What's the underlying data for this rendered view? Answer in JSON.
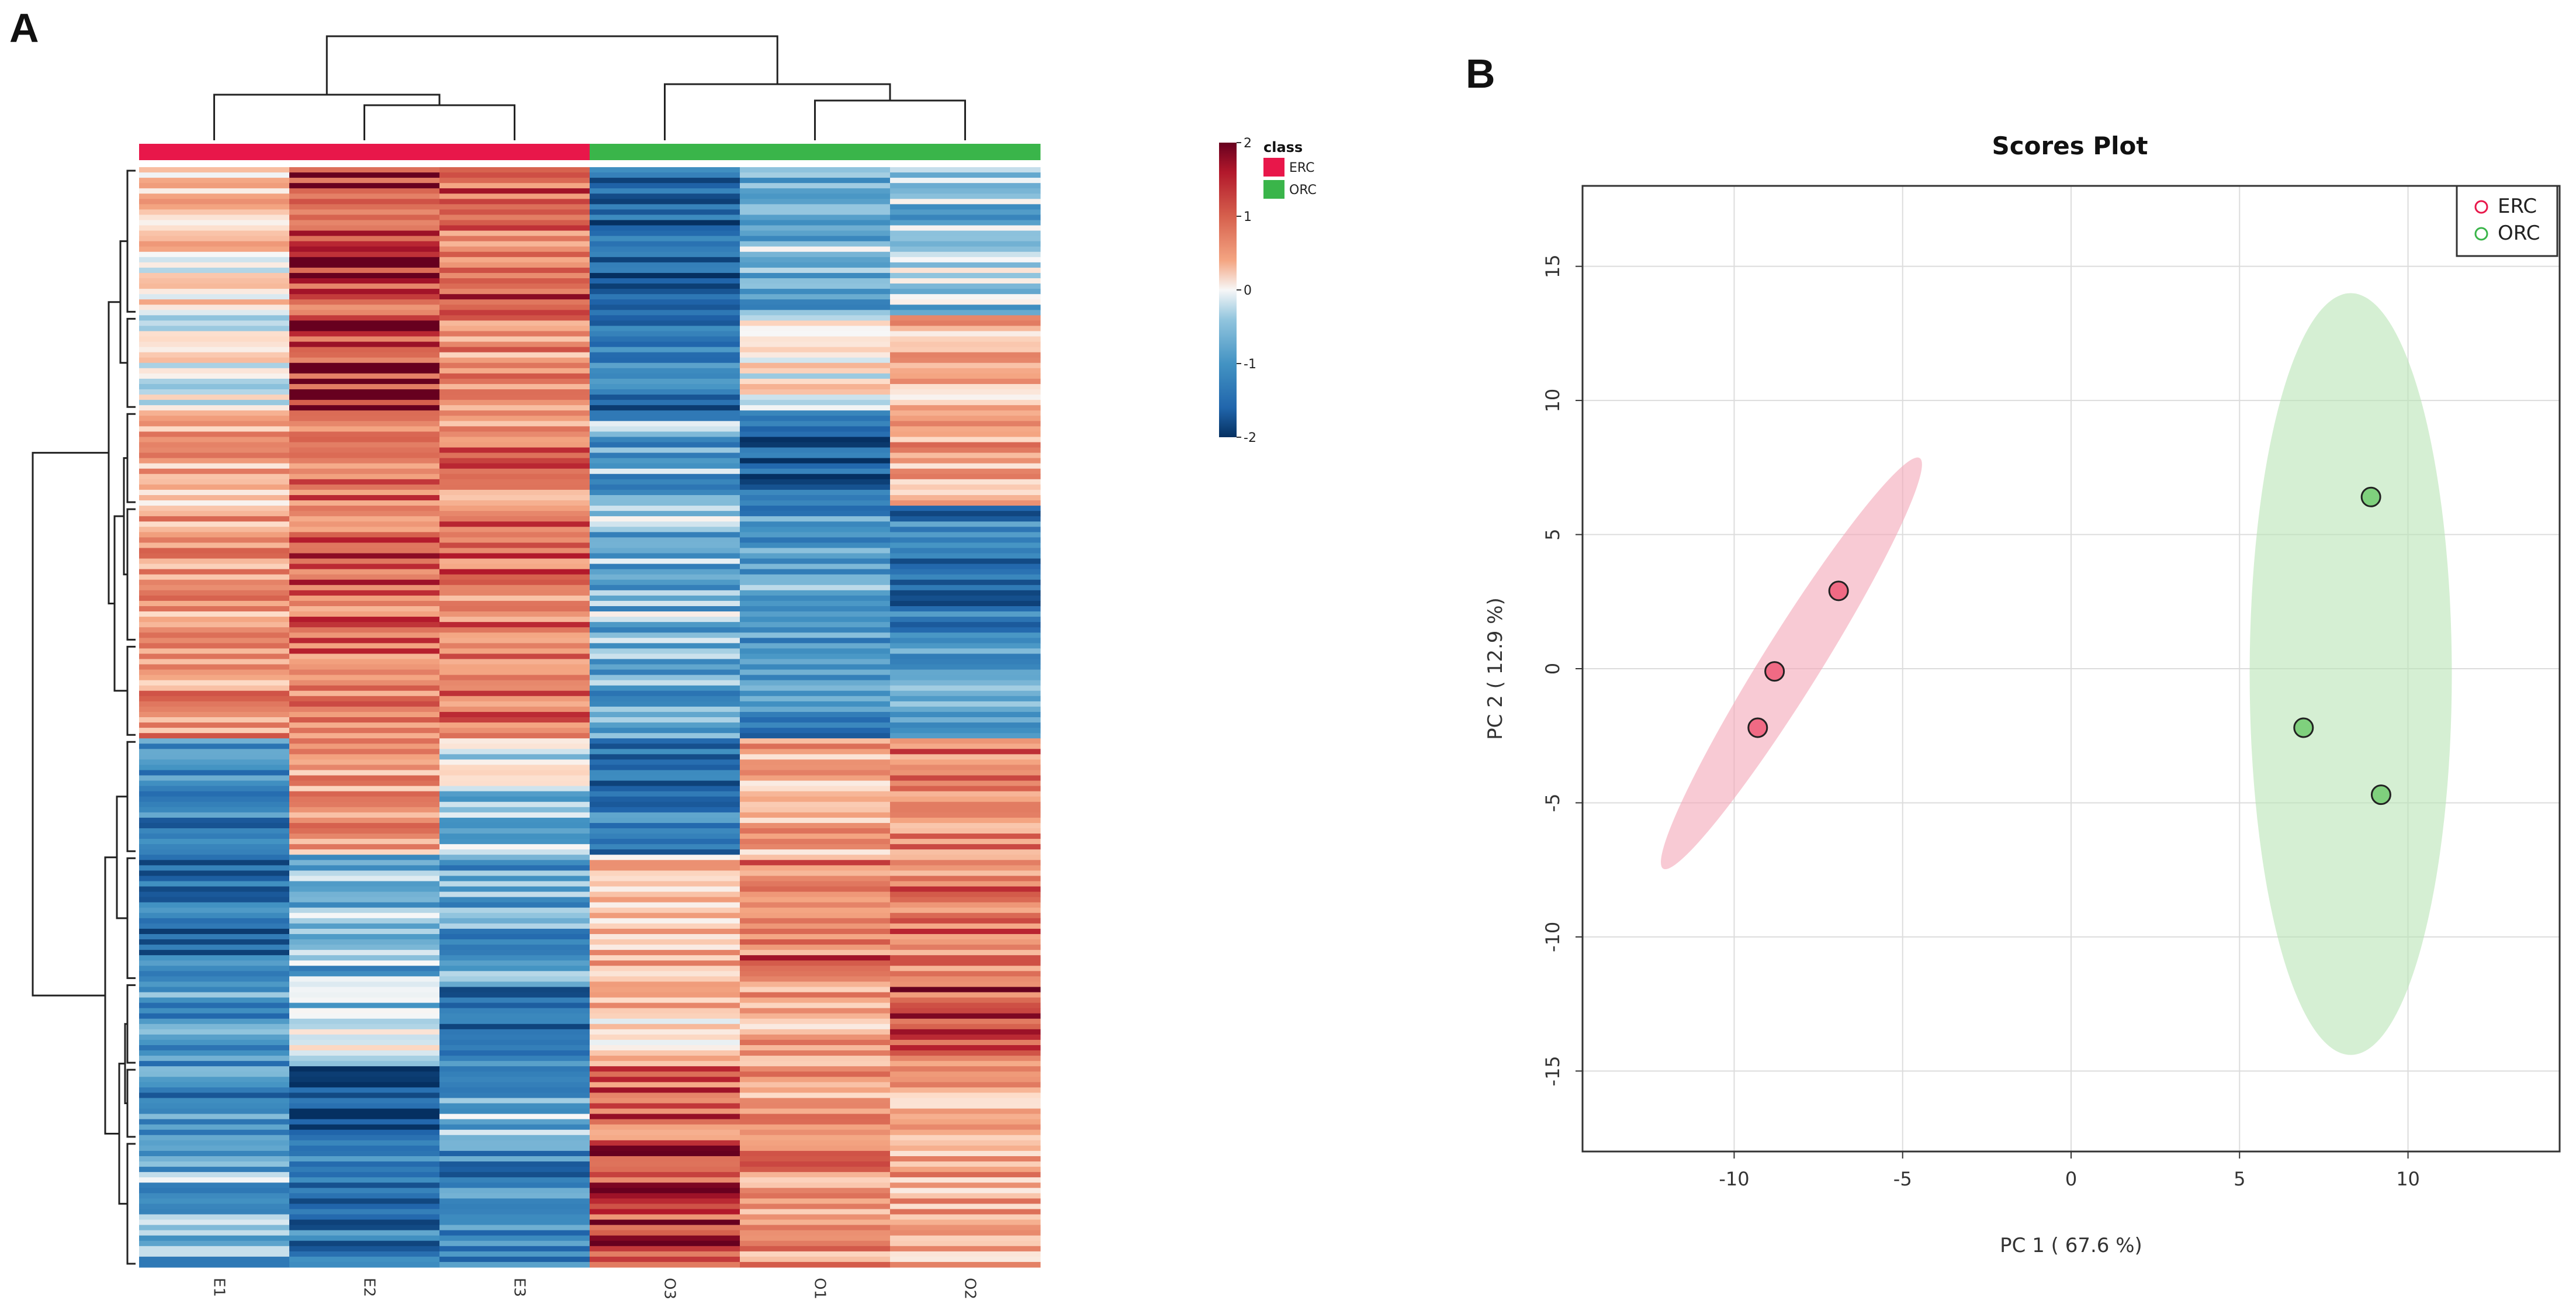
{
  "figure": {
    "panel_a_label": "A",
    "panel_b_label": "B"
  },
  "colors": {
    "erc": "#e8174a",
    "orc": "#3ab54a",
    "erc_point": "#f06a84",
    "orc_point": "#7fd07d",
    "erc_ellipse": "#f4a6b8",
    "orc_ellipse": "#b9e4b6",
    "heat_low": "#053061",
    "heat_mid": "#f7f7f7",
    "heat_high": "#67001f"
  },
  "chart_data": [
    {
      "type": "heatmap",
      "title": "",
      "columns": [
        "E1",
        "E2",
        "E3",
        "O3",
        "O1",
        "O2"
      ],
      "column_classes": [
        "ERC",
        "ERC",
        "ERC",
        "ORC",
        "ORC",
        "ORC"
      ],
      "column_dendrogram": "((E1,(E2,E3)),(O3,(O1,O2)))",
      "color_scale": {
        "min": -2,
        "max": 2,
        "ticks": [
          2,
          1,
          0,
          -1,
          -2
        ]
      },
      "legend": {
        "title": "class",
        "entries": [
          "ERC",
          "ORC"
        ]
      },
      "cluster_blocks": [
        {
          "rows": 28,
          "means": [
            0.4,
            1.6,
            1.3,
            -1.5,
            -0.6,
            -0.4
          ]
        },
        {
          "rows": 18,
          "means": [
            0.0,
            1.7,
            1.0,
            -1.3,
            0.3,
            0.6
          ]
        },
        {
          "rows": 18,
          "means": [
            0.7,
            1.2,
            1.1,
            -0.7,
            -1.4,
            0.8
          ]
        },
        {
          "rows": 26,
          "means": [
            0.9,
            1.3,
            1.2,
            -0.5,
            -0.8,
            -1.2
          ]
        },
        {
          "rows": 18,
          "means": [
            1.0,
            1.3,
            1.1,
            -0.8,
            -1.1,
            -0.9
          ]
        },
        {
          "rows": 22,
          "means": [
            -1.1,
            1.0,
            -0.2,
            -1.2,
            0.8,
            1.1
          ]
        },
        {
          "rows": 24,
          "means": [
            -1.3,
            -0.6,
            -0.8,
            0.7,
            1.2,
            1.2
          ]
        },
        {
          "rows": 16,
          "means": [
            -0.9,
            -0.2,
            -1.2,
            0.5,
            0.8,
            1.4
          ]
        },
        {
          "rows": 14,
          "means": [
            -1.0,
            -1.8,
            -0.6,
            1.3,
            0.9,
            0.8
          ]
        },
        {
          "rows": 24,
          "means": [
            -0.6,
            -1.2,
            -1.1,
            1.6,
            1.0,
            0.8
          ]
        }
      ]
    },
    {
      "type": "scatter",
      "title": "Scores Plot",
      "xlabel": "PC 1 ( 67.6 %)",
      "ylabel": "PC 2 ( 12.9 %)",
      "xlim": [
        -14.5,
        14.5
      ],
      "ylim": [
        -18,
        18
      ],
      "xticks": [
        -10,
        -5,
        0,
        5,
        10
      ],
      "yticks": [
        15,
        10,
        5,
        0,
        -5,
        -10,
        -15
      ],
      "grid": true,
      "legend_position": "top-right",
      "series": [
        {
          "name": "ERC",
          "points": [
            [
              -6.9,
              2.9
            ],
            [
              -8.8,
              -0.1
            ],
            [
              -9.3,
              -2.2
            ]
          ],
          "ellipse": {
            "cx": -8.3,
            "cy": 0.2,
            "rx": 8.0,
            "ry": 0.95,
            "angle_deg": 58
          }
        },
        {
          "name": "ORC",
          "points": [
            [
              8.9,
              6.4
            ],
            [
              6.9,
              -2.2
            ],
            [
              9.2,
              -4.7
            ]
          ],
          "ellipse": {
            "cx": 8.3,
            "cy": -0.2,
            "rx": 3.0,
            "ry": 14.2,
            "angle_deg": 0
          }
        }
      ]
    }
  ]
}
